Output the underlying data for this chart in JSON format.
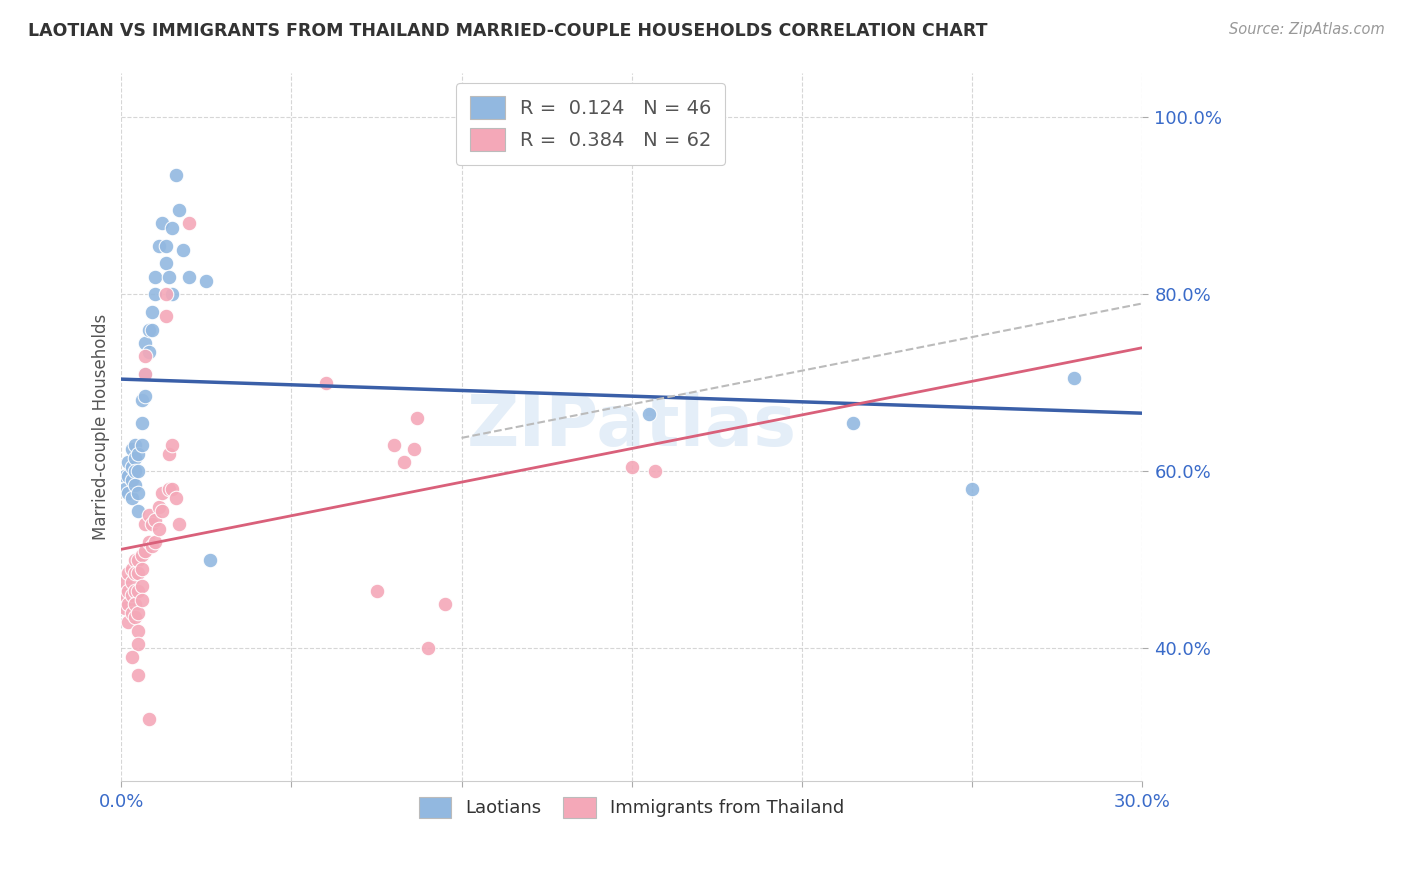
{
  "title": "LAOTIAN VS IMMIGRANTS FROM THAILAND MARRIED-COUPLE HOUSEHOLDS CORRELATION CHART",
  "source": "Source: ZipAtlas.com",
  "ylabel_label": "Married-couple Households",
  "xlim": [
    0.0,
    0.3
  ],
  "ylim": [
    0.25,
    1.05
  ],
  "xticks": [
    0.0,
    0.05,
    0.1,
    0.15,
    0.2,
    0.25,
    0.3
  ],
  "yticks": [
    0.4,
    0.6,
    0.8,
    1.0
  ],
  "ytick_labels": [
    "40.0%",
    "60.0%",
    "80.0%",
    "100.0%"
  ],
  "xtick_labels": [
    "0.0%",
    "",
    "",
    "",
    "",
    "",
    "30.0%"
  ],
  "legend_blue_r": "0.124",
  "legend_blue_n": "46",
  "legend_pink_r": "0.384",
  "legend_pink_n": "62",
  "legend_blue_label": "Laotians",
  "legend_pink_label": "Immigrants from Thailand",
  "watermark": "ZIPatlas",
  "blue_color": "#92B8E0",
  "pink_color": "#F4A8B8",
  "blue_line_color": "#3A5FA8",
  "pink_line_color": "#D9607A",
  "gray_dash_color": "#BBBBBB",
  "blue_scatter": [
    [
      0.001,
      0.595
    ],
    [
      0.001,
      0.58
    ],
    [
      0.002,
      0.61
    ],
    [
      0.002,
      0.595
    ],
    [
      0.002,
      0.575
    ],
    [
      0.003,
      0.625
    ],
    [
      0.003,
      0.605
    ],
    [
      0.003,
      0.59
    ],
    [
      0.003,
      0.57
    ],
    [
      0.004,
      0.63
    ],
    [
      0.004,
      0.615
    ],
    [
      0.004,
      0.6
    ],
    [
      0.004,
      0.585
    ],
    [
      0.005,
      0.62
    ],
    [
      0.005,
      0.6
    ],
    [
      0.005,
      0.575
    ],
    [
      0.005,
      0.555
    ],
    [
      0.006,
      0.68
    ],
    [
      0.006,
      0.655
    ],
    [
      0.006,
      0.63
    ],
    [
      0.007,
      0.745
    ],
    [
      0.007,
      0.71
    ],
    [
      0.007,
      0.685
    ],
    [
      0.008,
      0.76
    ],
    [
      0.008,
      0.735
    ],
    [
      0.009,
      0.78
    ],
    [
      0.009,
      0.76
    ],
    [
      0.01,
      0.82
    ],
    [
      0.01,
      0.8
    ],
    [
      0.011,
      0.855
    ],
    [
      0.012,
      0.88
    ],
    [
      0.013,
      0.855
    ],
    [
      0.013,
      0.835
    ],
    [
      0.014,
      0.82
    ],
    [
      0.015,
      0.875
    ],
    [
      0.015,
      0.8
    ],
    [
      0.016,
      0.935
    ],
    [
      0.017,
      0.895
    ],
    [
      0.018,
      0.85
    ],
    [
      0.02,
      0.82
    ],
    [
      0.025,
      0.815
    ],
    [
      0.026,
      0.5
    ],
    [
      0.155,
      0.665
    ],
    [
      0.215,
      0.655
    ],
    [
      0.25,
      0.58
    ],
    [
      0.28,
      0.705
    ]
  ],
  "pink_scatter": [
    [
      0.001,
      0.475
    ],
    [
      0.001,
      0.46
    ],
    [
      0.001,
      0.445
    ],
    [
      0.002,
      0.485
    ],
    [
      0.002,
      0.465
    ],
    [
      0.002,
      0.45
    ],
    [
      0.002,
      0.43
    ],
    [
      0.003,
      0.49
    ],
    [
      0.003,
      0.475
    ],
    [
      0.003,
      0.46
    ],
    [
      0.003,
      0.44
    ],
    [
      0.004,
      0.5
    ],
    [
      0.004,
      0.485
    ],
    [
      0.004,
      0.465
    ],
    [
      0.004,
      0.45
    ],
    [
      0.004,
      0.435
    ],
    [
      0.005,
      0.5
    ],
    [
      0.005,
      0.485
    ],
    [
      0.005,
      0.465
    ],
    [
      0.005,
      0.44
    ],
    [
      0.005,
      0.42
    ],
    [
      0.005,
      0.405
    ],
    [
      0.006,
      0.505
    ],
    [
      0.006,
      0.49
    ],
    [
      0.006,
      0.47
    ],
    [
      0.006,
      0.455
    ],
    [
      0.007,
      0.73
    ],
    [
      0.007,
      0.71
    ],
    [
      0.007,
      0.54
    ],
    [
      0.007,
      0.51
    ],
    [
      0.008,
      0.55
    ],
    [
      0.008,
      0.52
    ],
    [
      0.009,
      0.54
    ],
    [
      0.009,
      0.515
    ],
    [
      0.01,
      0.545
    ],
    [
      0.01,
      0.52
    ],
    [
      0.011,
      0.56
    ],
    [
      0.011,
      0.535
    ],
    [
      0.012,
      0.575
    ],
    [
      0.012,
      0.555
    ],
    [
      0.013,
      0.8
    ],
    [
      0.013,
      0.775
    ],
    [
      0.014,
      0.62
    ],
    [
      0.014,
      0.58
    ],
    [
      0.015,
      0.63
    ],
    [
      0.015,
      0.58
    ],
    [
      0.016,
      0.57
    ],
    [
      0.017,
      0.54
    ],
    [
      0.02,
      0.88
    ],
    [
      0.06,
      0.7
    ],
    [
      0.075,
      0.465
    ],
    [
      0.08,
      0.63
    ],
    [
      0.083,
      0.61
    ],
    [
      0.086,
      0.625
    ],
    [
      0.087,
      0.66
    ],
    [
      0.09,
      0.4
    ],
    [
      0.095,
      0.45
    ],
    [
      0.15,
      0.605
    ],
    [
      0.157,
      0.6
    ],
    [
      0.003,
      0.39
    ],
    [
      0.005,
      0.37
    ],
    [
      0.008,
      0.32
    ]
  ]
}
